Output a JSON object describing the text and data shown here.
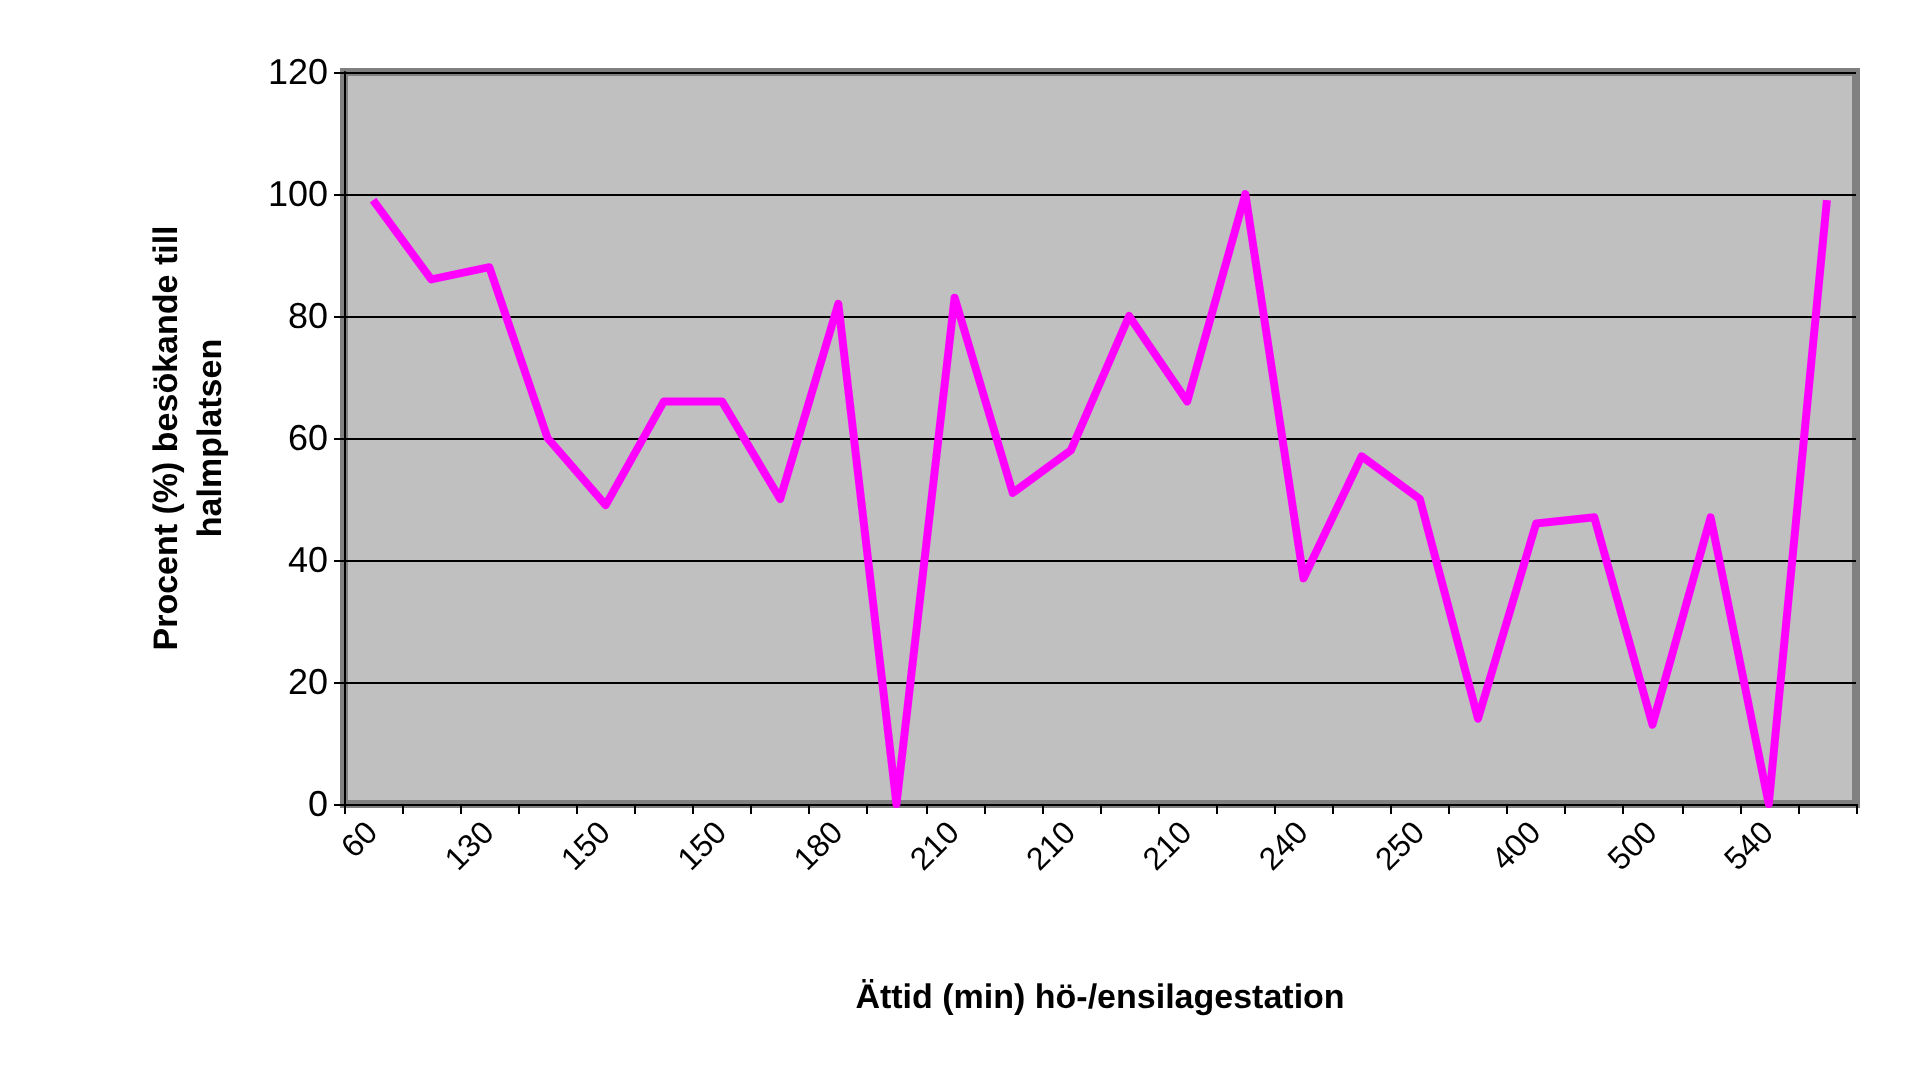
{
  "chart_data": {
    "type": "line",
    "xlabel": "Ättid (min) hö-/ensilagestation",
    "ylabel": "Procent (%) besökande till halmplatsen",
    "categories": [
      "60",
      null,
      "130",
      null,
      "150",
      null,
      "150",
      null,
      "180",
      null,
      "210",
      null,
      "210",
      null,
      "210",
      null,
      "240",
      null,
      "250",
      null,
      "400",
      null,
      "500",
      null,
      "540",
      null
    ],
    "series": [
      {
        "color": "#ff00ff",
        "values": [
          99,
          86,
          88,
          60,
          49,
          66,
          66,
          50,
          82,
          0,
          83,
          51,
          58,
          80,
          66,
          100,
          37,
          57,
          50,
          14,
          46,
          47,
          13,
          47,
          0,
          99
        ]
      }
    ],
    "ylim": [
      0,
      120
    ],
    "yticks": [
      0,
      20,
      40,
      60,
      80,
      100,
      120
    ],
    "grid": "y",
    "marker": "none",
    "line_style": "solid"
  }
}
